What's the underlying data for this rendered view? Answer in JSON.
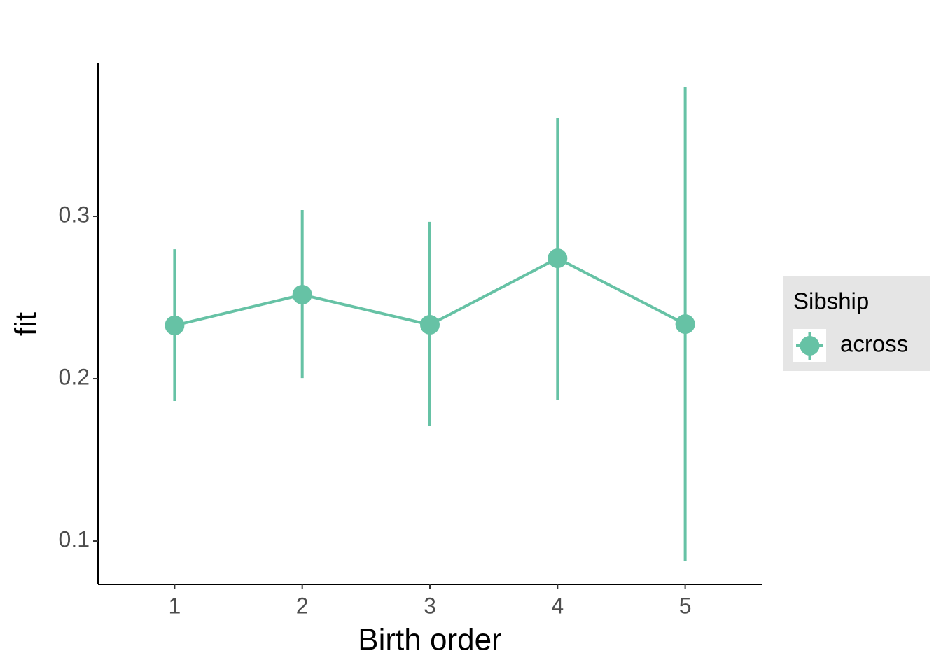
{
  "chart_data": {
    "type": "line",
    "x_label": "Birth order",
    "y_label": "fit",
    "x": [
      1,
      2,
      3,
      4,
      5
    ],
    "series": [
      {
        "name": "across",
        "color": "#66c2a5",
        "values": [
          0.2328,
          0.2517,
          0.2332,
          0.2741,
          0.2336
        ],
        "lower": [
          0.1862,
          0.2004,
          0.1711,
          0.1871,
          0.0879
        ],
        "upper": [
          0.2797,
          0.3039,
          0.2966,
          0.3608,
          0.3793
        ]
      }
    ],
    "xlim": [
      0.4,
      5.6
    ],
    "xticks": [
      1,
      2,
      3,
      4,
      5
    ],
    "ylim": [
      0.0733,
      0.3944
    ],
    "yticks": [
      0.1,
      0.2,
      0.3
    ],
    "legend_title": "Sibship",
    "legend_position": "right",
    "grid": false
  }
}
